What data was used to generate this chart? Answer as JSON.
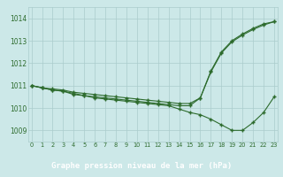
{
  "x": [
    0,
    1,
    2,
    3,
    4,
    5,
    6,
    7,
    8,
    9,
    10,
    11,
    12,
    13,
    14,
    15,
    16,
    17,
    18,
    19,
    20,
    21,
    22,
    23
  ],
  "line1": [
    1011.0,
    1010.9,
    1010.85,
    1010.8,
    1010.7,
    1010.65,
    1010.6,
    1010.55,
    1010.5,
    1010.45,
    1010.4,
    1010.35,
    1010.3,
    1010.25,
    1010.2,
    1010.2,
    1010.45,
    1011.65,
    1012.5,
    1013.0,
    1013.3,
    1013.55,
    1013.75,
    1013.85
  ],
  "line2": [
    1011.0,
    1010.9,
    1010.8,
    1010.75,
    1010.65,
    1010.55,
    1010.45,
    1010.4,
    1010.35,
    1010.3,
    1010.25,
    1010.2,
    1010.15,
    1010.1,
    1009.95,
    1009.8,
    1009.7,
    1009.5,
    1009.25,
    1009.0,
    1009.0,
    1009.35,
    1009.8,
    1010.5
  ],
  "line3": [
    1011.0,
    1010.9,
    1010.8,
    1010.75,
    1010.6,
    1010.55,
    1010.5,
    1010.45,
    1010.4,
    1010.35,
    1010.3,
    1010.25,
    1010.2,
    1010.15,
    1010.1,
    1010.1,
    1010.45,
    1011.6,
    1012.45,
    1012.95,
    1013.25,
    1013.5,
    1013.7,
    1013.85
  ],
  "ylim": [
    1008.5,
    1014.5
  ],
  "yticks": [
    1009,
    1010,
    1011,
    1012,
    1013,
    1014
  ],
  "xlim": [
    -0.3,
    23.3
  ],
  "xticks": [
    0,
    1,
    2,
    3,
    4,
    5,
    6,
    7,
    8,
    9,
    10,
    11,
    12,
    13,
    14,
    15,
    16,
    17,
    18,
    19,
    20,
    21,
    22,
    23
  ],
  "line_color": "#2d6b2d",
  "bg_color": "#cce8e8",
  "grid_color": "#aacccc",
  "xlabel": "Graphe pression niveau de la mer (hPa)",
  "xlabel_bg": "#2d6b2d"
}
